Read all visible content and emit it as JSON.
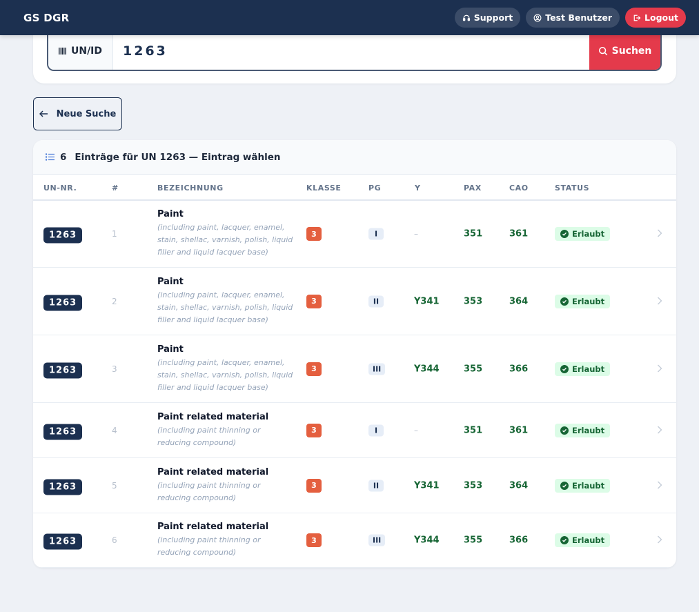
{
  "app": {
    "title": "GS DGR",
    "nav": {
      "support_label": "Support",
      "user_label": "Test Benutzer",
      "logout_label": "Logout"
    }
  },
  "search": {
    "prefix_label": "UN/ID",
    "value": "1263",
    "button_label": "Suchen"
  },
  "back_button_label": "Neue Suche",
  "results": {
    "count": "6",
    "title": "Einträge für UN 1263 — Eintrag wählen",
    "columns": {
      "un": "UN-NR.",
      "idx": "#",
      "desc": "BEZEICHNUNG",
      "klasse": "KLASSE",
      "pg": "PG",
      "y": "Y",
      "pax": "PAX",
      "cao": "CAO",
      "status": "STATUS"
    },
    "rows": [
      {
        "un": "1263",
        "idx": "1",
        "name": "Paint",
        "sub": "(including paint, lacquer, enamel, stain, shellac, varnish, polish, liquid filler and liquid lacquer base)",
        "klasse": "3",
        "pg": "I",
        "y": "–",
        "pax": "351",
        "cao": "361",
        "status": "Erlaubt"
      },
      {
        "un": "1263",
        "idx": "2",
        "name": "Paint",
        "sub": "(including paint, lacquer, enamel, stain, shellac, varnish, polish, liquid filler and liquid lacquer base)",
        "klasse": "3",
        "pg": "II",
        "y": "Y341",
        "pax": "353",
        "cao": "364",
        "status": "Erlaubt"
      },
      {
        "un": "1263",
        "idx": "3",
        "name": "Paint",
        "sub": "(including paint, lacquer, enamel, stain, shellac, varnish, polish, liquid filler and liquid lacquer base)",
        "klasse": "3",
        "pg": "III",
        "y": "Y344",
        "pax": "355",
        "cao": "366",
        "status": "Erlaubt"
      },
      {
        "un": "1263",
        "idx": "4",
        "name": "Paint related material",
        "sub": "(including paint thinning or reducing compound)",
        "klasse": "3",
        "pg": "I",
        "y": "–",
        "pax": "351",
        "cao": "361",
        "status": "Erlaubt"
      },
      {
        "un": "1263",
        "idx": "5",
        "name": "Paint related material",
        "sub": "(including paint thinning or reducing compound)",
        "klasse": "3",
        "pg": "II",
        "y": "Y341",
        "pax": "353",
        "cao": "364",
        "status": "Erlaubt"
      },
      {
        "un": "1263",
        "idx": "6",
        "name": "Paint related material",
        "sub": "(including paint thinning or reducing compound)",
        "klasse": "3",
        "pg": "III",
        "y": "Y344",
        "pax": "355",
        "cao": "366",
        "status": "Erlaubt"
      }
    ]
  },
  "icons": {
    "support": "headset-icon",
    "user": "user-circle-icon",
    "logout": "logout-icon",
    "barcode": "barcode-icon",
    "search": "search-icon",
    "back": "arrow-left-icon",
    "list": "list-icon",
    "check": "check-circle-icon",
    "chevron": "chevron-right-icon"
  },
  "colors": {
    "navbar": "#1c3050",
    "accent_red": "#e43a4b",
    "class_badge": "#e45f3f",
    "status_green": "#166534",
    "status_bg": "#dcfce7"
  }
}
